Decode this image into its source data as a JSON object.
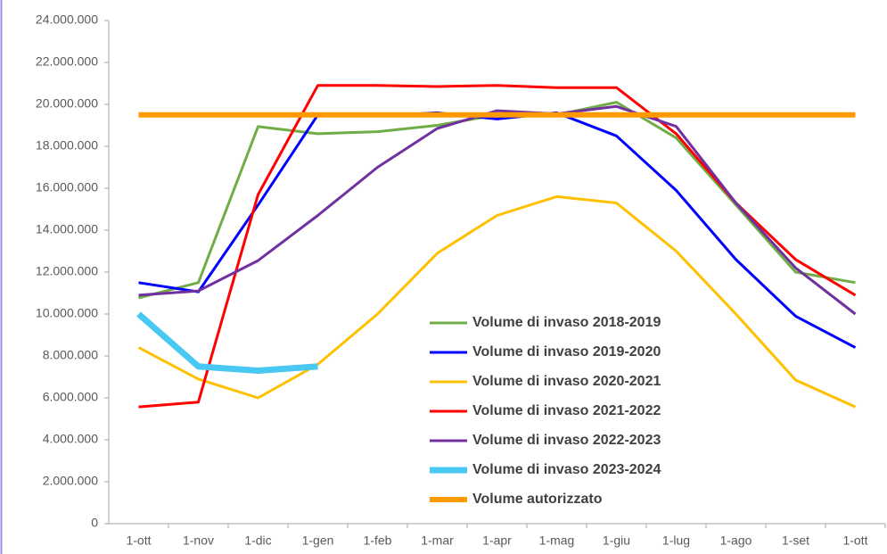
{
  "chart_data": {
    "type": "line",
    "categories": [
      "1-ott",
      "1-nov",
      "1-dic",
      "1-gen",
      "1-feb",
      "1-mar",
      "1-apr",
      "1-mag",
      "1-giu",
      "1-lug",
      "1-ago",
      "1-set",
      "1-ott"
    ],
    "series": [
      {
        "name": "Volume di invaso 2018-2019",
        "color": "#70ad47",
        "width": 3,
        "values": [
          10770000,
          11500000,
          18940000,
          18600000,
          18700000,
          19000000,
          19500000,
          19500000,
          20100000,
          18400000,
          15200000,
          12000000,
          11500000
        ]
      },
      {
        "name": "Volume di invaso 2019-2020",
        "color": "#0000ff",
        "width": 3,
        "values": [
          11500000,
          11060000,
          15200000,
          19500000,
          19450000,
          19600000,
          19300000,
          19600000,
          18500000,
          15900000,
          12600000,
          9900000,
          8400000
        ]
      },
      {
        "name": "Volume di invaso 2020-2021",
        "color": "#ffc000",
        "width": 3,
        "values": [
          8400000,
          6900000,
          6000000,
          7600000,
          10000000,
          12900000,
          14700000,
          15600000,
          15300000,
          13000000,
          10000000,
          6850000,
          5570000
        ]
      },
      {
        "name": "Volume di invaso 2021-2022",
        "color": "#ff0000",
        "width": 3,
        "values": [
          5570000,
          5800000,
          15700000,
          20900000,
          20900000,
          20850000,
          20900000,
          20800000,
          20800000,
          18600000,
          15300000,
          12600000,
          10900000
        ]
      },
      {
        "name": "Volume di invaso 2022-2023",
        "color": "#7030a0",
        "width": 3,
        "values": [
          10900000,
          11100000,
          12550000,
          14700000,
          17000000,
          18850000,
          19700000,
          19550000,
          19900000,
          18950000,
          15300000,
          12200000,
          10000000
        ]
      },
      {
        "name": "Volume di invaso 2023-2024",
        "color": "#48c8f2",
        "width": 7,
        "values": [
          10000000,
          7500000,
          7300000,
          7500000,
          null,
          null,
          null,
          null,
          null,
          null,
          null,
          null,
          null
        ]
      },
      {
        "name": "Volume autorizzato",
        "color": "#ff9900",
        "width": 6,
        "values": [
          19500000,
          19500000,
          19500000,
          19500000,
          19500000,
          19500000,
          19500000,
          19500000,
          19500000,
          19500000,
          19500000,
          19500000,
          19500000
        ]
      }
    ],
    "ylim": [
      0,
      24000000
    ],
    "yticks": [
      0,
      {
        "value": 2000000,
        "label": "2.000.000"
      },
      {
        "value": 4000000,
        "label": "4.000.000"
      },
      {
        "value": 6000000,
        "label": "6.000.000"
      },
      {
        "value": 8000000,
        "label": "8.000.000"
      },
      {
        "value": 10000000,
        "label": "10.000.000"
      },
      {
        "value": 12000000,
        "label": "12.000.000"
      },
      {
        "value": 14000000,
        "label": "14.000.000"
      },
      {
        "value": 16000000,
        "label": "16.000.000"
      },
      {
        "value": 18000000,
        "label": "18.000.000"
      },
      {
        "value": 20000000,
        "label": "20.000.000"
      },
      {
        "value": 22000000,
        "label": "22.000.000"
      },
      {
        "value": 24000000,
        "label": "24.000.000"
      }
    ],
    "grid": false
  }
}
